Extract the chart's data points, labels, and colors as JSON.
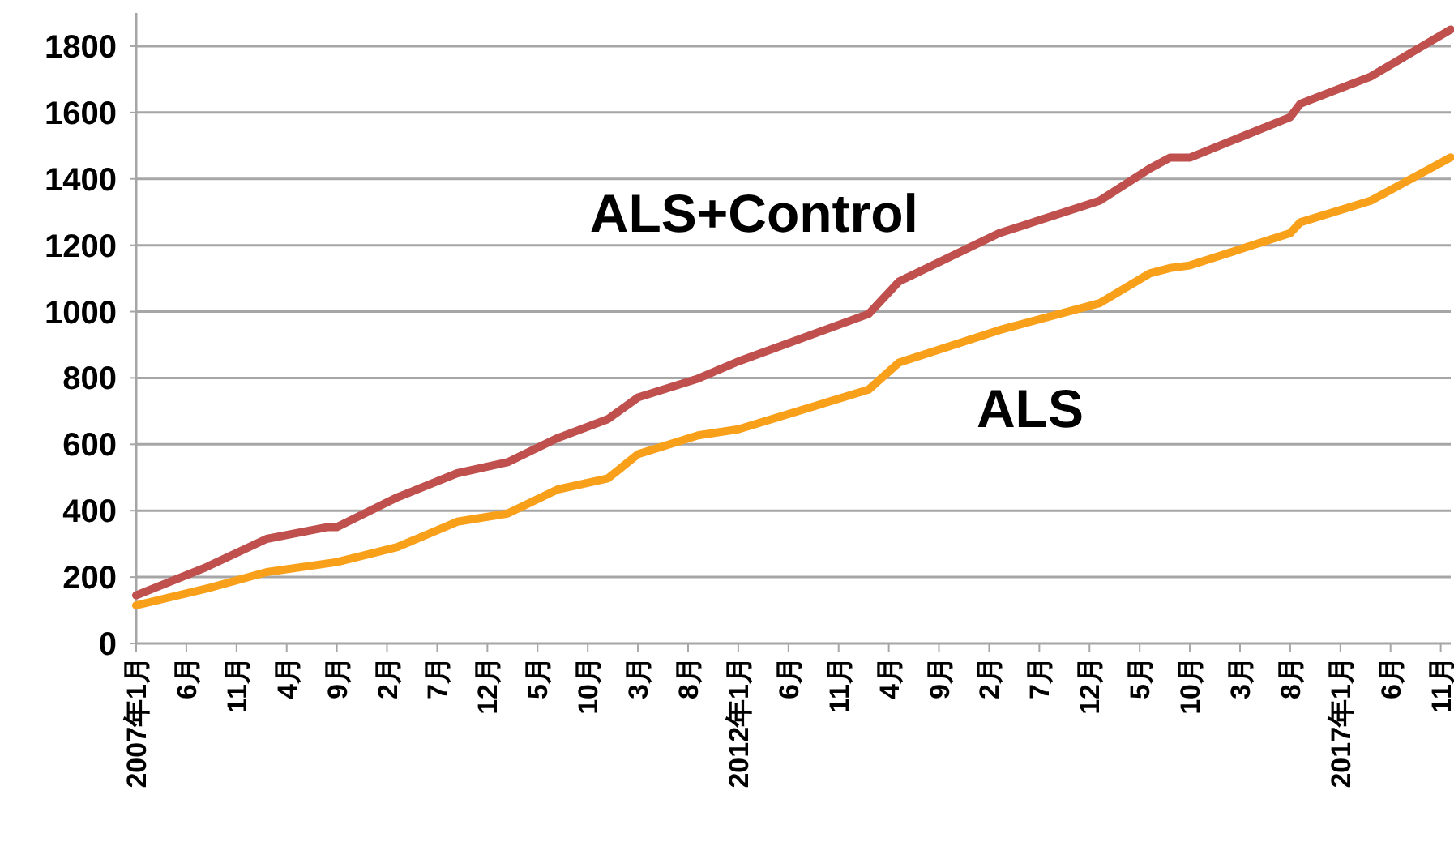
{
  "chart_data": {
    "type": "line",
    "grid": "y",
    "legend": false,
    "line_style": "solid",
    "xlim": [
      "2007-01",
      "2017-12"
    ],
    "ylim": [
      0,
      1900
    ],
    "yticks": [
      0,
      200,
      400,
      600,
      800,
      1000,
      1200,
      1400,
      1600,
      1800
    ],
    "xticks": [
      {
        "value": "2007-01",
        "label": "2007年1月"
      },
      {
        "value": "2007-06",
        "label": "6月"
      },
      {
        "value": "2007-11",
        "label": "11月"
      },
      {
        "value": "2008-04",
        "label": "4月"
      },
      {
        "value": "2008-09",
        "label": "9月"
      },
      {
        "value": "2009-02",
        "label": "2月"
      },
      {
        "value": "2009-07",
        "label": "7月"
      },
      {
        "value": "2009-12",
        "label": "12月"
      },
      {
        "value": "2010-05",
        "label": "5月"
      },
      {
        "value": "2010-10",
        "label": "10月"
      },
      {
        "value": "2011-03",
        "label": "3月"
      },
      {
        "value": "2011-08",
        "label": "8月"
      },
      {
        "value": "2012-01",
        "label": "2012年1月"
      },
      {
        "value": "2012-06",
        "label": "6月"
      },
      {
        "value": "2012-11",
        "label": "11月"
      },
      {
        "value": "2013-04",
        "label": "4月"
      },
      {
        "value": "2013-09",
        "label": "9月"
      },
      {
        "value": "2014-02",
        "label": "2月"
      },
      {
        "value": "2014-07",
        "label": "7月"
      },
      {
        "value": "2014-12",
        "label": "12月"
      },
      {
        "value": "2015-05",
        "label": "5月"
      },
      {
        "value": "2015-10",
        "label": "10月"
      },
      {
        "value": "2016-03",
        "label": "3月"
      },
      {
        "value": "2016-08",
        "label": "8月"
      },
      {
        "value": "2017-01",
        "label": "2017年1月"
      },
      {
        "value": "2017-06",
        "label": "6月"
      },
      {
        "value": "2017-11",
        "label": "11月"
      }
    ],
    "series": [
      {
        "name": "ALS+Control",
        "color": "#c0504d",
        "x": [
          "2007-01",
          "2007-08",
          "2008-02",
          "2008-08",
          "2008-09",
          "2009-03",
          "2009-09",
          "2010-02",
          "2010-07",
          "2010-12",
          "2011-03",
          "2011-09",
          "2012-01",
          "2013-02",
          "2013-05",
          "2014-03",
          "2015-01",
          "2015-06",
          "2015-08",
          "2015-10",
          "2016-08",
          "2016-09",
          "2017-04",
          "2017-12"
        ],
        "values": [
          145,
          230,
          315,
          350,
          350,
          440,
          513,
          546,
          619,
          676,
          741,
          798,
          850,
          993,
          1090,
          1236,
          1334,
          1431,
          1464,
          1464,
          1586,
          1626,
          1708,
          1850
        ]
      },
      {
        "name": "ALS",
        "color": "#f9a01b",
        "x": [
          "2007-01",
          "2007-08",
          "2008-02",
          "2008-09",
          "2009-03",
          "2009-09",
          "2010-02",
          "2010-07",
          "2010-12",
          "2011-03",
          "2011-09",
          "2012-01",
          "2013-02",
          "2013-05",
          "2014-03",
          "2015-01",
          "2015-06",
          "2015-08",
          "2015-10",
          "2016-08",
          "2016-09",
          "2017-04",
          "2017-12"
        ],
        "values": [
          115,
          165,
          215,
          245,
          290,
          367,
          391,
          464,
          497,
          570,
          627,
          645,
          765,
          846,
          944,
          1025,
          1115,
          1131,
          1139,
          1236,
          1269,
          1334,
          1465
        ]
      }
    ]
  }
}
